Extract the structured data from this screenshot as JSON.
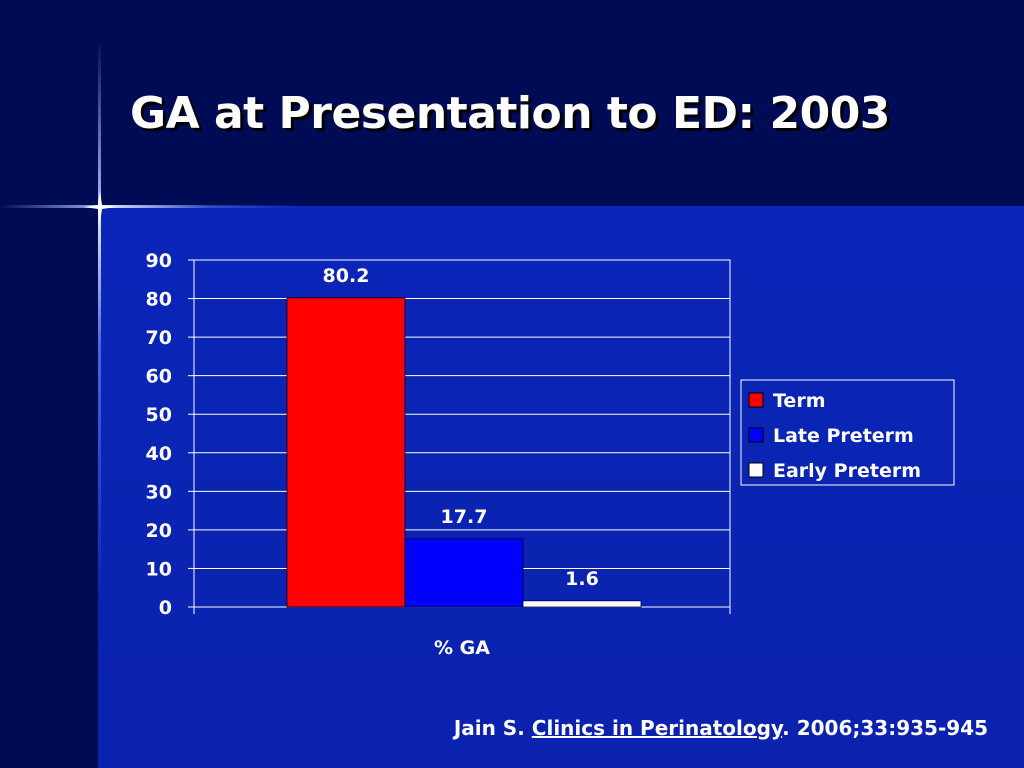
{
  "slide": {
    "title": "GA at Presentation to ED: 2003",
    "background": "#000f66",
    "accent": "#0a22ad"
  },
  "citation": {
    "author": "Jain S. ",
    "journal": "Clinics in Perinatology",
    "details": ". 2006;33:935-945"
  },
  "chart_data": {
    "type": "bar",
    "title": "",
    "xlabel": "% GA",
    "ylabel": "",
    "categories": [
      "% GA"
    ],
    "series": [
      {
        "name": "Term",
        "values": [
          80.2
        ],
        "color": "#ff0000",
        "label": "80.2"
      },
      {
        "name": "Late Preterm",
        "values": [
          17.7
        ],
        "color": "#0000ff",
        "label": "17.7"
      },
      {
        "name": "Early Preterm",
        "values": [
          1.6
        ],
        "color": "#ffffff",
        "label": "1.6"
      }
    ],
    "ylim": [
      0,
      90
    ],
    "yticks": [
      0,
      10,
      20,
      30,
      40,
      50,
      60,
      70,
      80,
      90
    ],
    "grid": true,
    "legend": "right"
  }
}
